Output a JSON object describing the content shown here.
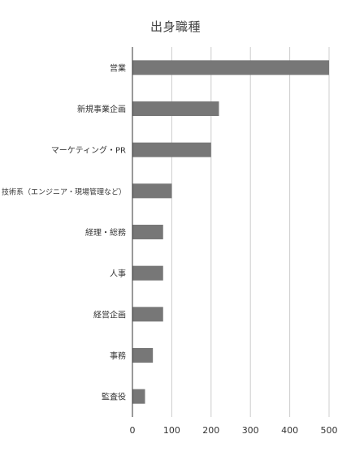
{
  "chart_data": {
    "type": "bar",
    "orientation": "horizontal",
    "title": "出身職種",
    "categories": [
      "営業",
      "新規事業企画",
      "マーケティング・PR",
      "技術系（エンジニア・現場管理など）",
      "経理・総務",
      "人事",
      "経営企画",
      "事務",
      "監査役"
    ],
    "values": [
      500,
      220,
      200,
      100,
      78,
      78,
      78,
      52,
      32
    ],
    "xlabel": "",
    "ylabel": "",
    "xlim": [
      0,
      500
    ],
    "ticks": [
      0,
      100,
      200,
      300,
      400,
      500
    ],
    "grid": "vertical",
    "legend": "none",
    "bar_color": "#777777",
    "grid_color": "#cccccc",
    "axis_color": "#333333"
  }
}
